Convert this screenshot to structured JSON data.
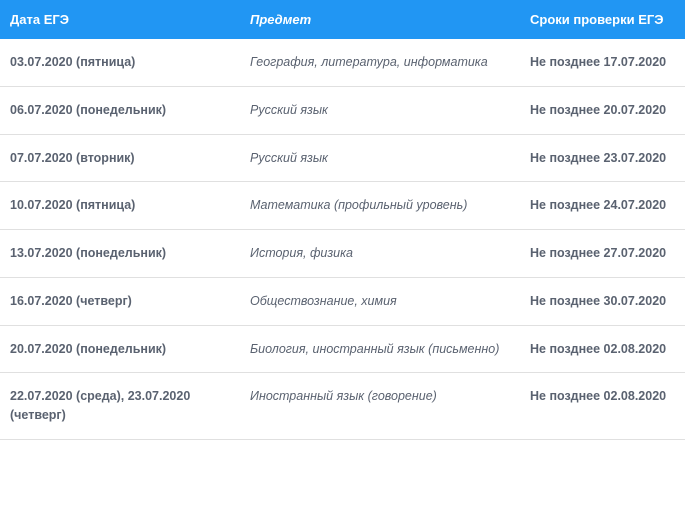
{
  "header_bg": "#2196f3",
  "header_text_color": "#ffffff",
  "body_text_color": "#5a6270",
  "row_border_color": "#e0e0e0",
  "columns": [
    {
      "label": "Дата ЕГЭ",
      "class": "col-date"
    },
    {
      "label": "Предмет",
      "class": "col-subject"
    },
    {
      "label": "Сроки проверки ЕГЭ",
      "class": "col-deadline"
    }
  ],
  "rows": [
    {
      "date": "03.07.2020 (пятница)",
      "subject": "География, литература, информатика",
      "deadline": "Не позднее 17.07.2020"
    },
    {
      "date": "06.07.2020 (понедельник)",
      "subject": "Русский язык",
      "deadline": "Не позднее 20.07.2020"
    },
    {
      "date": "07.07.2020 (вторник)",
      "subject": "Русский язык",
      "deadline": "Не позднее 23.07.2020"
    },
    {
      "date": "10.07.2020 (пятница)",
      "subject": "Математика (профильный уровень)",
      "deadline": "Не позднее 24.07.2020"
    },
    {
      "date": "13.07.2020 (понедельник)",
      "subject": "История, физика",
      "deadline": "Не позднее 27.07.2020"
    },
    {
      "date": "16.07.2020 (четверг)",
      "subject": "Обществознание, химия",
      "deadline": "Не позднее 30.07.2020"
    },
    {
      "date": "20.07.2020 (понедельник)",
      "subject": "Биология, иностранный язык (письменно)",
      "deadline": "Не позднее 02.08.2020"
    },
    {
      "date": "22.07.2020 (среда), 23.07.2020 (четверг)",
      "subject": "Иностранный язык (говорение)",
      "deadline": "Не позднее 02.08.2020"
    }
  ]
}
